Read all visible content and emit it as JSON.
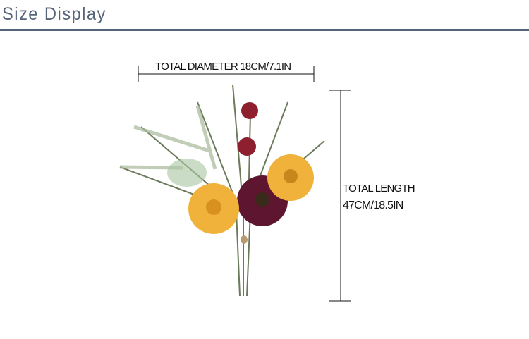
{
  "header": {
    "title": "Size Display",
    "color": "#56647a"
  },
  "product": {
    "image": "flower-bouquet"
  },
  "dimensions": {
    "diameter_label": "TOTAL DIAMETER 18CM/7.1IN",
    "length_label_line1": "TOTAL LENGTH",
    "length_label_line2": "47CM/18.5IN"
  }
}
